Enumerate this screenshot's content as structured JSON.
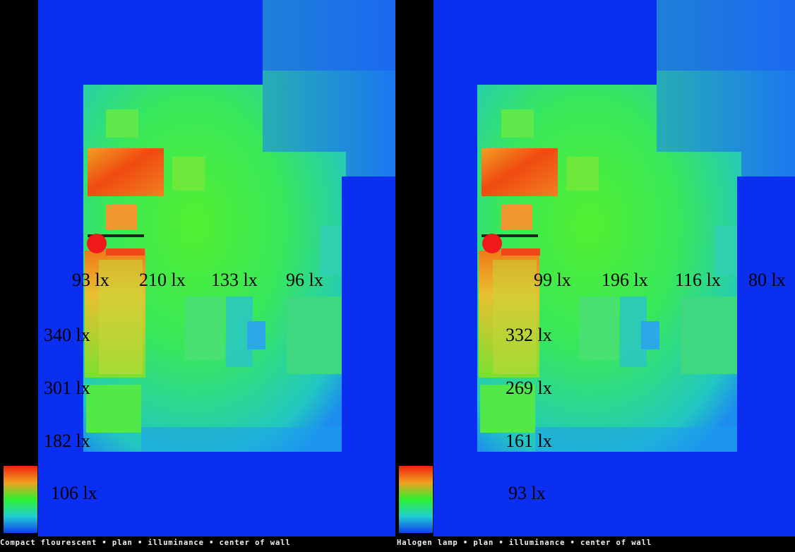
{
  "panels": [
    {
      "id": "left",
      "caption": "Compact flourescent • plan • illuminance • center of wall",
      "readings_top_row": [
        "93 lx",
        "210 lx",
        "133 lx",
        "96 lx"
      ],
      "readings_left_column": [
        "340 lx",
        "301 lx",
        "182 lx",
        "106 lx"
      ]
    },
    {
      "id": "right",
      "caption": "Halogen lamp • plan • illuminance • center of wall",
      "readings_top_row": [
        "99 lx",
        "196 lx",
        "116 lx",
        "80 lx"
      ],
      "readings_left_column": [
        "332 lx",
        "269 lx",
        "161 lx",
        "93 lx"
      ]
    }
  ],
  "colors": {
    "background_blue": "#0a2ff0",
    "green": "#2ee82e",
    "orange": "#f06a10",
    "lamp_red": "#f01818",
    "frame_black": "#000000"
  }
}
